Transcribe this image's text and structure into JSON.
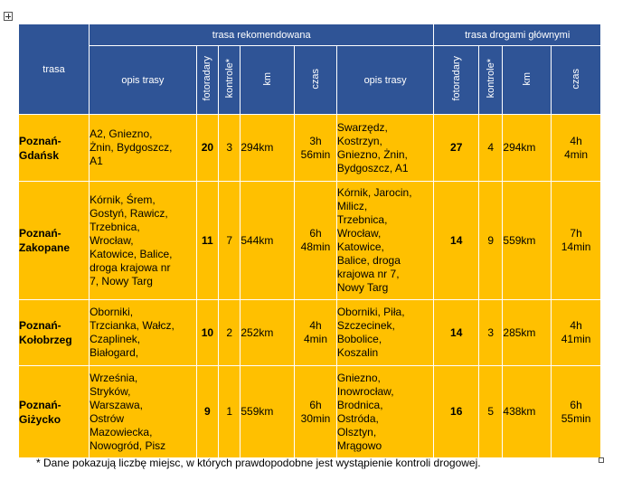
{
  "header": {
    "route": "trasa",
    "group_recommended": "trasa rekomendowana",
    "group_main_roads": "trasa drogami głównymi",
    "desc": "opis trasy",
    "cameras": "fotoradary",
    "controls": "kontrole*",
    "km": "km",
    "time": "czas"
  },
  "rows": [
    {
      "name": [
        "Poznań-",
        "Gdańsk"
      ],
      "rec": {
        "desc": [
          "A2, Gniezno,",
          "Żnin, Bydgoszcz,",
          "A1"
        ],
        "cameras": "20",
        "controls": "3",
        "km": "294km",
        "time": [
          "3h",
          "56min"
        ]
      },
      "main": {
        "desc": [
          "Swarzędz,",
          "Kostrzyn,",
          "Gniezno, Żnin,",
          "Bydgoszcz, A1"
        ],
        "cameras": "27",
        "controls": "4",
        "km": "294km",
        "time": [
          "4h",
          "4min"
        ]
      }
    },
    {
      "name": [
        "Poznań-",
        "Zakopane"
      ],
      "rec": {
        "desc": [
          "Kórnik, Śrem,",
          "Gostyń, Rawicz,",
          "Trzebnica,",
          "Wrocław,",
          "Katowice, Balice,",
          "droga krajowa nr",
          "7, Nowy Targ"
        ],
        "cameras": "11",
        "controls": "7",
        "km": "544km",
        "time": [
          "6h",
          "48min"
        ]
      },
      "main": {
        "desc": [
          "Kórnik, Jarocin,",
          "Milicz,",
          "Trzebnica,",
          "Wrocław,",
          "Katowice,",
          "Balice, droga",
          "krajowa nr 7,",
          "Nowy Targ"
        ],
        "cameras": "14",
        "controls": "9",
        "km": "559km",
        "time": [
          "7h",
          "14min"
        ]
      }
    },
    {
      "name": [
        "Poznań-",
        "Kołobrzeg"
      ],
      "rec": {
        "desc": [
          "Oborniki,",
          "Trzcianka, Wałcz,",
          "Czaplinek,",
          "Białogard,"
        ],
        "cameras": "10",
        "controls": "2",
        "km": "252km",
        "time": [
          "4h",
          "4min"
        ]
      },
      "main": {
        "desc": [
          "Oborniki, Piła,",
          "Szczecinek,",
          "Bobolice,",
          "Koszalin"
        ],
        "cameras": "14",
        "controls": "3",
        "km": "285km",
        "time": [
          "4h",
          "41min"
        ]
      }
    },
    {
      "name": [
        "Poznań-",
        "Giżycko"
      ],
      "rec": {
        "desc": [
          "Września,",
          "Stryków,",
          "Warszawa,",
          "Ostrów",
          "Mazowiecka,",
          "Nowogród, Pisz"
        ],
        "cameras": "9",
        "controls": "1",
        "km": "559km",
        "time": [
          "6h",
          "30min"
        ]
      },
      "main": {
        "desc": [
          "Gniezno,",
          "Inowrocław,",
          "Brodnica,",
          "Ostróda,",
          "Olsztyn,",
          "Mrągowo"
        ],
        "cameras": "16",
        "controls": "5",
        "km": "438km",
        "time": [
          "6h",
          "55min"
        ]
      }
    }
  ],
  "footnote": "* Dane pokazują liczbę miejsc, w których prawdopodobne jest wystąpienie kontroli drogowej."
}
